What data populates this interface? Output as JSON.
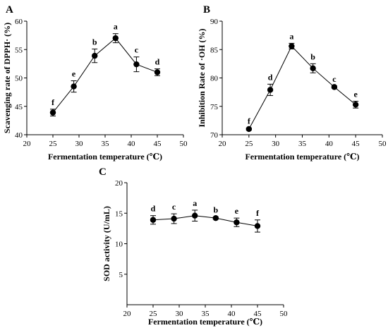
{
  "chart_data": [
    {
      "type": "line",
      "panel": "A",
      "xlabel": "Fermentation temperature (℃)",
      "ylabel": "Scavenging rate of DPPH· (%)",
      "xlim": [
        20,
        50
      ],
      "ylim": [
        40,
        60
      ],
      "xticks": [
        20,
        25,
        30,
        35,
        40,
        45,
        50
      ],
      "yticks": [
        40,
        45,
        50,
        55,
        60
      ],
      "grid": false,
      "series": [
        {
          "x": [
            25,
            29,
            33,
            37,
            41,
            45
          ],
          "y": [
            43.9,
            48.5,
            53.9,
            57.0,
            52.4,
            51.0
          ],
          "err": [
            0.6,
            1.0,
            1.2,
            0.8,
            1.3,
            0.6
          ],
          "labels": [
            "f",
            "e",
            "b",
            "a",
            "c",
            "d"
          ]
        }
      ]
    },
    {
      "type": "line",
      "panel": "B",
      "xlabel": "Fermentation temperature (℃)",
      "ylabel": "Inhibition Rate of ·OH (%)",
      "xlim": [
        20,
        50
      ],
      "ylim": [
        70,
        90
      ],
      "xticks": [
        20,
        25,
        30,
        35,
        40,
        45,
        50
      ],
      "yticks": [
        70,
        75,
        80,
        85,
        90
      ],
      "grid": false,
      "series": [
        {
          "x": [
            25,
            29,
            33,
            37,
            41,
            45
          ],
          "y": [
            71.0,
            77.9,
            85.6,
            81.7,
            78.4,
            75.3
          ],
          "err": [
            0.2,
            1.0,
            0.5,
            0.8,
            0.2,
            0.6
          ],
          "labels": [
            "f",
            "d",
            "a",
            "b",
            "c",
            "e"
          ]
        }
      ]
    },
    {
      "type": "line",
      "panel": "C",
      "xlabel": "Fermentation temperature (℃)",
      "ylabel": "SOD activity (U/mL)",
      "xlim": [
        20,
        50
      ],
      "ylim": [
        0,
        20
      ],
      "xticks": [
        20,
        25,
        30,
        35,
        40,
        45,
        50
      ],
      "yticks": [
        5,
        10,
        15,
        20
      ],
      "grid": false,
      "series": [
        {
          "x": [
            25,
            29,
            33,
            37,
            41,
            45
          ],
          "y": [
            13.9,
            14.1,
            14.6,
            14.2,
            13.5,
            12.9
          ],
          "err": [
            0.7,
            0.8,
            0.9,
            0.2,
            0.7,
            1.0
          ],
          "labels": [
            "d",
            "c",
            "a",
            "b",
            "e",
            "f"
          ]
        }
      ]
    }
  ]
}
